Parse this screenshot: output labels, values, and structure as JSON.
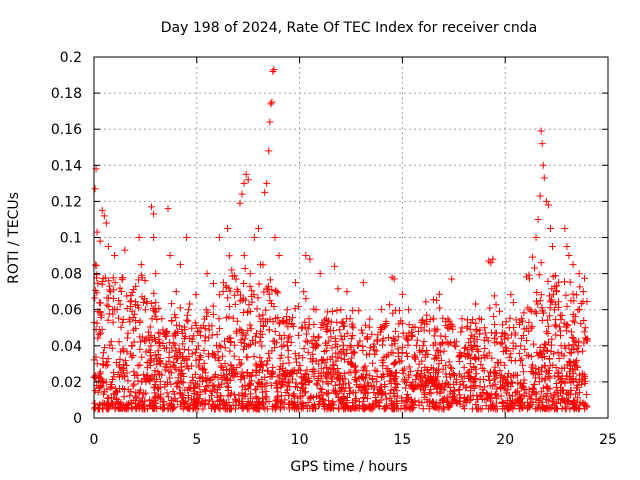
{
  "chart_data": {
    "type": "scatter",
    "title": "Day 198 of 2024, Rate Of TEC Index for receiver cnda",
    "xlabel": "GPS time / hours",
    "ylabel": "ROTI / TECUs",
    "xlim": [
      0,
      25
    ],
    "ylim": [
      0,
      0.2
    ],
    "x_ticks": [
      0,
      5,
      10,
      15,
      20,
      25
    ],
    "y_ticks": [
      0,
      0.02,
      0.04,
      0.06,
      0.08,
      0.1,
      0.12,
      0.14,
      0.16,
      0.18,
      0.2
    ],
    "x_tick_labels": [
      "0",
      "5",
      "10",
      "15",
      "20",
      "25"
    ],
    "y_tick_labels": [
      "0",
      "0.02",
      "0.04",
      "0.06",
      "0.08",
      "0.1",
      "0.12",
      "0.14",
      "0.16",
      "0.18",
      "0.2"
    ],
    "grid": true,
    "marker": "+",
    "marker_color": "#ff0000",
    "series": [
      {
        "name": "ROTI",
        "points": [
          [
            0.05,
            0.127
          ],
          [
            0.1,
            0.138
          ],
          [
            0.15,
            0.103
          ],
          [
            0.3,
            0.098
          ],
          [
            0.4,
            0.115
          ],
          [
            0.5,
            0.112
          ],
          [
            0.6,
            0.108
          ],
          [
            0.7,
            0.095
          ],
          [
            1.0,
            0.09
          ],
          [
            1.5,
            0.093
          ],
          [
            2.2,
            0.1
          ],
          [
            2.3,
            0.085
          ],
          [
            2.8,
            0.117
          ],
          [
            2.9,
            0.113
          ],
          [
            2.9,
            0.1
          ],
          [
            3.0,
            0.08
          ],
          [
            3.6,
            0.116
          ],
          [
            3.7,
            0.09
          ],
          [
            4.2,
            0.085
          ],
          [
            4.5,
            0.1
          ],
          [
            5.5,
            0.08
          ],
          [
            6.1,
            0.1
          ],
          [
            6.5,
            0.105
          ],
          [
            7.1,
            0.119
          ],
          [
            7.2,
            0.124
          ],
          [
            7.3,
            0.13
          ],
          [
            7.4,
            0.135
          ],
          [
            7.5,
            0.132
          ],
          [
            7.8,
            0.1
          ],
          [
            8.0,
            0.105
          ],
          [
            8.3,
            0.125
          ],
          [
            8.4,
            0.13
          ],
          [
            8.5,
            0.148
          ],
          [
            8.55,
            0.164
          ],
          [
            8.6,
            0.174
          ],
          [
            8.65,
            0.175
          ],
          [
            8.7,
            0.192
          ],
          [
            8.75,
            0.193
          ],
          [
            8.8,
            0.1
          ],
          [
            9.0,
            0.09
          ],
          [
            10.3,
            0.09
          ],
          [
            10.5,
            0.088
          ],
          [
            11.0,
            0.08
          ],
          [
            11.7,
            0.084
          ],
          [
            12.3,
            0.07
          ],
          [
            13.1,
            0.075
          ],
          [
            14.5,
            0.078
          ],
          [
            14.6,
            0.077
          ],
          [
            17.4,
            0.077
          ],
          [
            19.2,
            0.087
          ],
          [
            19.3,
            0.086
          ],
          [
            19.4,
            0.088
          ],
          [
            20.4,
            0.064
          ],
          [
            21.5,
            0.1
          ],
          [
            21.6,
            0.11
          ],
          [
            21.7,
            0.123
          ],
          [
            21.75,
            0.159
          ],
          [
            21.8,
            0.152
          ],
          [
            21.85,
            0.14
          ],
          [
            21.9,
            0.133
          ],
          [
            22.0,
            0.12
          ],
          [
            22.1,
            0.118
          ],
          [
            22.2,
            0.105
          ],
          [
            22.3,
            0.095
          ],
          [
            22.9,
            0.105
          ],
          [
            23.0,
            0.095
          ],
          [
            23.1,
            0.09
          ],
          [
            23.3,
            0.085
          ],
          [
            23.6,
            0.08
          ],
          [
            23.8,
            0.07
          ],
          [
            0.8,
            0.07
          ],
          [
            1.2,
            0.065
          ],
          [
            1.8,
            0.068
          ],
          [
            2.5,
            0.06
          ],
          [
            3.3,
            0.055
          ],
          [
            4.0,
            0.07
          ],
          [
            4.6,
            0.06
          ],
          [
            5.2,
            0.05
          ],
          [
            5.8,
            0.062
          ],
          [
            6.3,
            0.075
          ],
          [
            6.7,
            0.082
          ],
          [
            7.0,
            0.07
          ],
          [
            7.6,
            0.08
          ],
          [
            8.1,
            0.085
          ],
          [
            8.9,
            0.07
          ],
          [
            9.4,
            0.06
          ],
          [
            9.8,
            0.075
          ],
          [
            10.2,
            0.07
          ],
          [
            10.8,
            0.06
          ],
          [
            11.3,
            0.055
          ],
          [
            12.0,
            0.06
          ],
          [
            12.6,
            0.05
          ],
          [
            13.3,
            0.045
          ],
          [
            14.0,
            0.05
          ],
          [
            14.8,
            0.045
          ],
          [
            15.3,
            0.06
          ],
          [
            15.9,
            0.05
          ],
          [
            16.5,
            0.055
          ],
          [
            17.2,
            0.05
          ],
          [
            17.9,
            0.055
          ],
          [
            18.5,
            0.045
          ],
          [
            19.0,
            0.05
          ],
          [
            19.8,
            0.045
          ],
          [
            20.2,
            0.05
          ],
          [
            20.8,
            0.055
          ],
          [
            21.2,
            0.06
          ],
          [
            22.5,
            0.07
          ],
          [
            23.2,
            0.065
          ],
          [
            23.9,
            0.05
          ]
        ]
      }
    ]
  }
}
